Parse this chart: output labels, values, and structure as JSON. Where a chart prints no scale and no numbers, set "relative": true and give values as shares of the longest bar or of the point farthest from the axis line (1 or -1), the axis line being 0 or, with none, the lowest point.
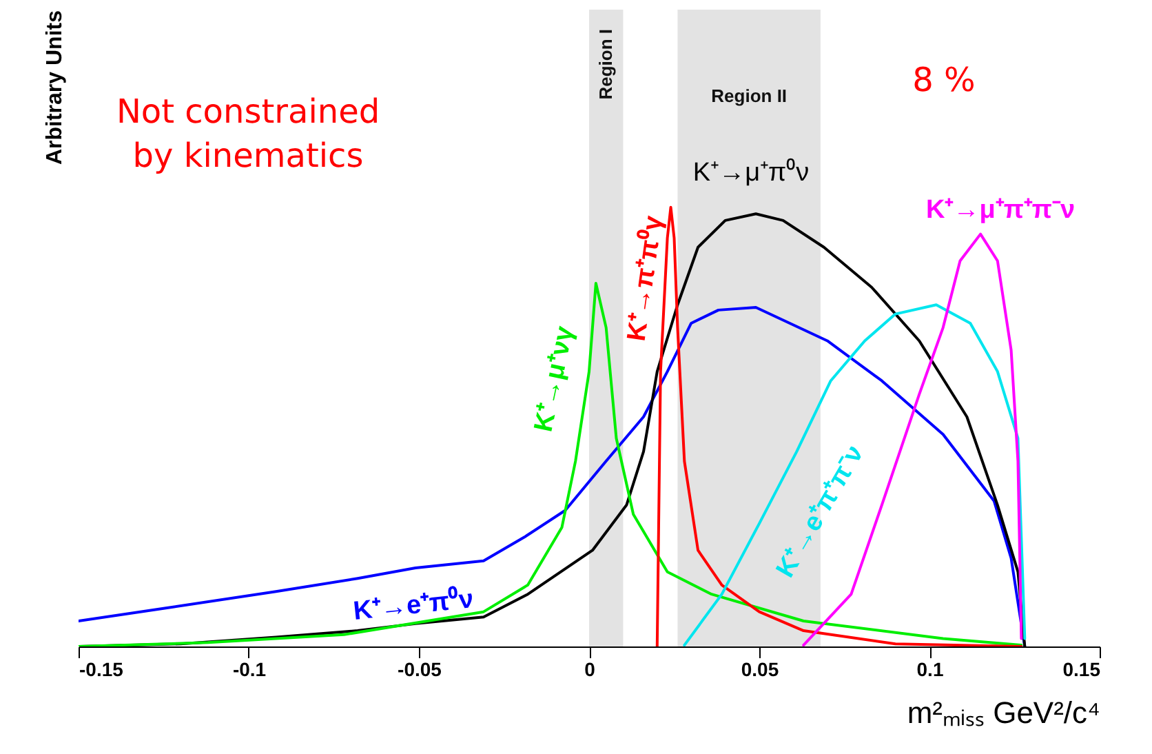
{
  "chart_data": {
    "type": "line",
    "relative": true,
    "ylabel": "Arbitrary Units",
    "xlabel": "m²ₘᵢₛₛ GeV²/c⁴",
    "xlim": [
      -0.15,
      0.15
    ],
    "xticks": [
      -0.15,
      -0.1,
      -0.05,
      0,
      0.05,
      0.1,
      0.15
    ],
    "tick_labels": "x",
    "grid": false,
    "annotations": [
      "Not constrained\nby kinematics",
      "8 %"
    ],
    "bands": [
      {
        "axis": "x",
        "from": 0,
        "to": 0.01,
        "label": "Region I",
        "color": "#d0d0d0"
      },
      {
        "axis": "x",
        "from": 0.026,
        "to": 0.068,
        "label": "Region II",
        "color": "#d0d0d0"
      }
    ],
    "series": [
      {
        "name": "K⁺→e⁺π⁰ν",
        "color": "#0000ff",
        "x": [
          -0.15,
          -0.124,
          -0.092,
          -0.068,
          -0.051,
          -0.031,
          -0.019,
          -0.007,
          0.005,
          0.016,
          0.023,
          0.03,
          0.038,
          0.049,
          0.07,
          0.086,
          0.104,
          0.119,
          0.124,
          0.128
        ],
        "values": [
          0.058,
          0.088,
          0.125,
          0.155,
          0.179,
          0.195,
          0.249,
          0.31,
          0.422,
          0.523,
          0.626,
          0.736,
          0.766,
          0.772,
          0.696,
          0.605,
          0.483,
          0.331,
          0.201,
          0
        ]
      },
      {
        "name": "K⁺→μ⁺π⁰ν",
        "color": "#000000",
        "x": [
          -0.15,
          -0.12,
          -0.092,
          -0.068,
          -0.051,
          -0.031,
          -0.018,
          0.001,
          0.011,
          0.016,
          0.02,
          0.026,
          0.032,
          0.04,
          0.049,
          0.057,
          0.069,
          0.083,
          0.097,
          0.111,
          0.12,
          0.126,
          0.128
        ],
        "values": [
          0,
          0.006,
          0.021,
          0.036,
          0.052,
          0.067,
          0.119,
          0.219,
          0.322,
          0.444,
          0.626,
          0.778,
          0.909,
          0.97,
          0.985,
          0.97,
          0.909,
          0.818,
          0.696,
          0.523,
          0.322,
          0.17,
          0
        ]
      },
      {
        "name": "K⁺→μ⁺νγ",
        "color": "#00ee00",
        "x": [
          -0.15,
          -0.112,
          -0.072,
          -0.031,
          -0.018,
          -0.008,
          -0.004,
          0,
          0.002,
          0.005,
          0.008,
          0.013,
          0.023,
          0.036,
          0.063,
          0.104,
          0.127
        ],
        "values": [
          0,
          0.009,
          0.027,
          0.079,
          0.14,
          0.271,
          0.422,
          0.626,
          0.827,
          0.726,
          0.474,
          0.301,
          0.17,
          0.119,
          0.058,
          0.018,
          0.003
        ]
      },
      {
        "name": "K⁺→π⁺π⁰γ",
        "color": "#ff0000",
        "x": [
          0.02,
          0.021,
          0.023,
          0.024,
          0.025,
          0.026,
          0.028,
          0.032,
          0.039,
          0.05,
          0.063,
          0.09,
          0.127
        ],
        "values": [
          0,
          0.626,
          0.93,
          1,
          0.93,
          0.726,
          0.422,
          0.219,
          0.14,
          0.079,
          0.036,
          0.006,
          0
        ]
      },
      {
        "name": "K⁺→e⁺π⁺π⁻ν",
        "color": "#00e5ee",
        "x": [
          0.028,
          0.039,
          0.05,
          0.061,
          0.071,
          0.081,
          0.09,
          0.102,
          0.112,
          0.12,
          0.126,
          0.128
        ],
        "values": [
          0.003,
          0.119,
          0.28,
          0.444,
          0.605,
          0.696,
          0.757,
          0.778,
          0.736,
          0.626,
          0.474,
          0.018
        ]
      },
      {
        "name": "K⁺→μ⁺π⁺π⁻ν",
        "color": "#ff00ff",
        "x": [
          0.063,
          0.077,
          0.086,
          0.097,
          0.104,
          0.109,
          0.115,
          0.12,
          0.124,
          0.126,
          0.127
        ],
        "values": [
          0.003,
          0.119,
          0.322,
          0.574,
          0.726,
          0.878,
          0.939,
          0.878,
          0.675,
          0.422,
          0.018
        ]
      }
    ]
  }
}
